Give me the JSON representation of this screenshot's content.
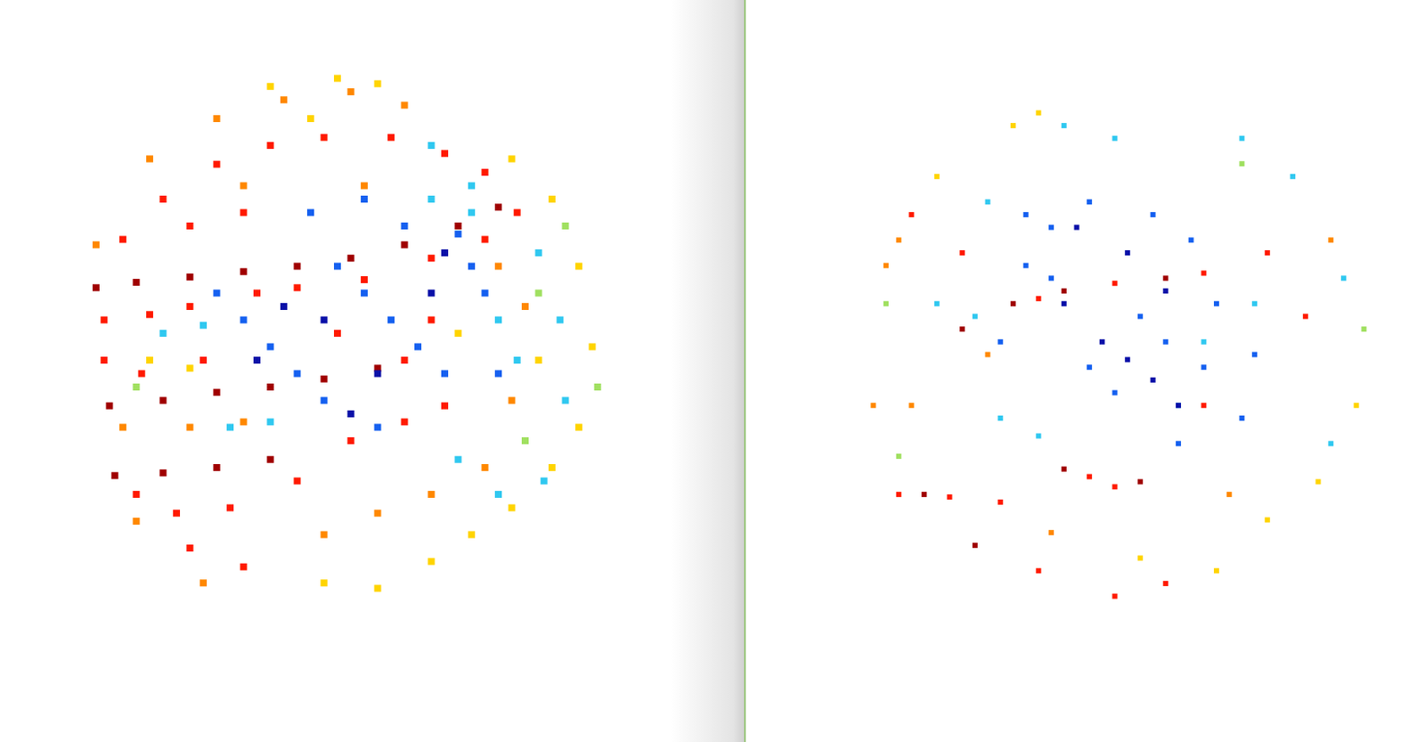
{
  "chart_data": [
    {
      "type": "scatter",
      "xlim": [
        -1.05,
        1.05
      ],
      "ylim": [
        -1.05,
        1.05
      ],
      "tick_labels": false,
      "marker": "square",
      "series": [
        {
          "color": "#a00000",
          "x": [
            -0.95,
            -0.8,
            -0.6,
            -0.4,
            -0.2,
            0.0,
            0.2,
            0.4,
            0.55,
            -0.9,
            -0.7,
            -0.5,
            -0.3,
            -0.1,
            0.1,
            -0.88,
            -0.7,
            -0.5,
            -0.3
          ],
          "values": [
            0.22,
            0.24,
            0.26,
            0.28,
            0.3,
            0.33,
            0.38,
            0.45,
            0.52,
            -0.22,
            -0.2,
            -0.17,
            -0.15,
            -0.12,
            -0.08,
            -0.48,
            -0.47,
            -0.45,
            -0.42
          ]
        },
        {
          "color": "#ff1a00",
          "x": [
            -0.92,
            -0.92,
            -0.75,
            -0.78,
            -0.6,
            -0.55,
            -0.35,
            -0.2,
            0.05,
            0.3,
            0.5,
            0.62,
            -0.85,
            -0.7,
            -0.5,
            -0.3,
            -0.1,
            0.15,
            0.35,
            0.5,
            -0.6,
            -0.4,
            -0.8,
            -0.65,
            -0.45,
            -0.6,
            -0.4,
            -0.2,
            0.0,
            0.2,
            0.35,
            -0.05,
            0.2,
            0.3
          ],
          "values": [
            0.1,
            -0.05,
            0.12,
            -0.1,
            0.15,
            -0.05,
            0.2,
            0.22,
            0.25,
            0.33,
            0.4,
            0.5,
            0.4,
            0.55,
            0.68,
            0.75,
            0.78,
            0.78,
            0.72,
            0.65,
            0.45,
            0.5,
            -0.55,
            -0.62,
            -0.6,
            -0.75,
            -0.82,
            -0.5,
            -0.35,
            -0.28,
            -0.22,
            0.05,
            -0.05,
            0.1
          ]
        },
        {
          "color": "#ff8800",
          "x": [
            -0.95,
            -0.75,
            -0.5,
            -0.25,
            0.0,
            0.2,
            -0.4,
            0.05,
            -0.85,
            -0.6,
            -0.4,
            -0.8,
            -0.55,
            -0.1,
            0.1,
            0.3,
            0.5,
            0.6,
            0.65,
            0.55
          ],
          "values": [
            0.38,
            0.7,
            0.85,
            0.92,
            0.95,
            0.9,
            0.6,
            0.6,
            -0.3,
            -0.3,
            -0.28,
            -0.65,
            -0.88,
            -0.7,
            -0.62,
            -0.55,
            -0.45,
            -0.2,
            0.15,
            0.3
          ]
        },
        {
          "color": "#ffd400",
          "x": [
            -0.3,
            -0.05,
            0.1,
            -0.15,
            -0.1,
            0.1,
            0.3,
            0.45,
            0.6,
            0.75,
            0.85,
            0.9,
            0.85,
            0.75,
            0.6,
            -0.75,
            -0.6,
            0.4,
            0.7
          ],
          "values": [
            0.97,
            1.0,
            0.98,
            0.85,
            -0.88,
            -0.9,
            -0.8,
            -0.7,
            -0.6,
            -0.45,
            -0.3,
            0.0,
            0.3,
            0.55,
            0.7,
            -0.05,
            -0.08,
            0.05,
            -0.05
          ]
        },
        {
          "color": "#a0e060",
          "x": [
            0.8,
            0.92,
            0.7,
            -0.8,
            0.65
          ],
          "values": [
            0.45,
            -0.15,
            0.2,
            -0.15,
            -0.35
          ]
        },
        {
          "color": "#30c8f0",
          "x": [
            0.3,
            0.45,
            0.7,
            0.78,
            0.8,
            0.72,
            0.55,
            0.4,
            0.55,
            -0.7,
            -0.55,
            -0.45,
            -0.3,
            0.62,
            0.45,
            0.3
          ],
          "values": [
            0.75,
            0.6,
            0.35,
            0.1,
            -0.2,
            -0.5,
            -0.55,
            -0.42,
            0.1,
            0.05,
            0.08,
            -0.3,
            -0.28,
            -0.05,
            0.5,
            0.55
          ]
        },
        {
          "color": "#1560f0",
          "x": [
            -0.5,
            -0.4,
            -0.3,
            -0.2,
            -0.1,
            -0.05,
            0.05,
            0.15,
            0.25,
            0.35,
            0.4,
            0.45,
            0.5,
            0.55,
            0.2,
            0.1,
            -0.15,
            0.05
          ],
          "values": [
            0.2,
            0.1,
            0.0,
            -0.1,
            -0.2,
            0.3,
            0.2,
            0.1,
            0.0,
            -0.1,
            0.42,
            0.3,
            0.2,
            -0.1,
            0.45,
            -0.3,
            0.5,
            0.55
          ]
        },
        {
          "color": "#0a10a8",
          "x": [
            -0.25,
            -0.1,
            0.1,
            0.3,
            0.35,
            -0.35,
            0.0
          ],
          "values": [
            0.15,
            0.1,
            -0.1,
            0.2,
            0.35,
            -0.05,
            -0.25
          ]
        }
      ]
    },
    {
      "type": "scatter",
      "xlim": [
        -1.05,
        1.05
      ],
      "ylim": [
        -1.05,
        1.05
      ],
      "tick_labels": false,
      "marker": "square",
      "series": [
        {
          "color": "#a00000",
          "x": [
            -0.6,
            -0.4,
            -0.2,
            0.2,
            -0.75,
            -0.2,
            0.1,
            -0.55
          ],
          "values": [
            0.1,
            0.2,
            0.25,
            0.3,
            -0.55,
            -0.45,
            -0.5,
            -0.75
          ]
        },
        {
          "color": "#ff1a00",
          "x": [
            -0.3,
            0.0,
            0.35,
            0.6,
            -0.85,
            -0.65,
            -0.45,
            -0.1,
            0.0,
            -0.3,
            0.0,
            0.2,
            -0.8,
            -0.6,
            0.75,
            0.35
          ],
          "values": [
            0.22,
            0.28,
            0.32,
            0.4,
            -0.55,
            -0.56,
            -0.58,
            -0.48,
            -0.52,
            -0.85,
            -0.95,
            -0.9,
            0.55,
            0.4,
            0.15,
            -0.2
          ]
        },
        {
          "color": "#ff8800",
          "x": [
            -0.9,
            -0.85,
            -0.95,
            -0.5,
            -0.25,
            0.45,
            -0.8,
            0.85
          ],
          "values": [
            0.35,
            0.45,
            -0.2,
            0.0,
            -0.7,
            -0.55,
            -0.2,
            0.45
          ]
        },
        {
          "color": "#ffd400",
          "x": [
            -0.4,
            -0.3,
            0.4,
            0.6,
            0.8,
            0.95,
            -0.7,
            0.1
          ],
          "values": [
            0.9,
            0.95,
            -0.85,
            -0.65,
            -0.5,
            -0.2,
            0.7,
            -0.8
          ]
        },
        {
          "color": "#a0e060",
          "x": [
            -0.85,
            0.5,
            0.98,
            -0.9
          ],
          "values": [
            -0.4,
            0.75,
            0.1,
            0.2
          ]
        },
        {
          "color": "#30c8f0",
          "x": [
            -0.7,
            -0.55,
            -0.45,
            -0.3,
            0.5,
            0.7,
            0.9,
            0.85,
            -0.2,
            0.0,
            0.35,
            0.55,
            -0.5,
            0.25
          ],
          "values": [
            0.2,
            0.15,
            -0.25,
            -0.32,
            0.85,
            0.7,
            0.3,
            -0.35,
            0.9,
            0.85,
            0.05,
            0.2,
            0.6,
            -0.2
          ]
        },
        {
          "color": "#1560f0",
          "x": [
            -0.35,
            -0.25,
            -0.1,
            0.15,
            0.3,
            -0.35,
            -0.25,
            0.1,
            0.2,
            0.35,
            0.4,
            0.55,
            -0.1,
            0.0,
            -0.45,
            0.25,
            0.5
          ],
          "values": [
            0.55,
            0.5,
            0.6,
            0.55,
            0.45,
            0.35,
            0.3,
            0.15,
            0.05,
            -0.05,
            0.2,
            0.0,
            -0.05,
            -0.15,
            0.05,
            -0.35,
            -0.25
          ]
        },
        {
          "color": "#0a10a8",
          "x": [
            -0.15,
            0.05,
            -0.05,
            0.05,
            0.15,
            0.25,
            0.2,
            -0.2
          ],
          "values": [
            0.5,
            0.4,
            0.05,
            -0.02,
            -0.1,
            -0.2,
            0.25,
            0.2
          ]
        }
      ]
    }
  ]
}
